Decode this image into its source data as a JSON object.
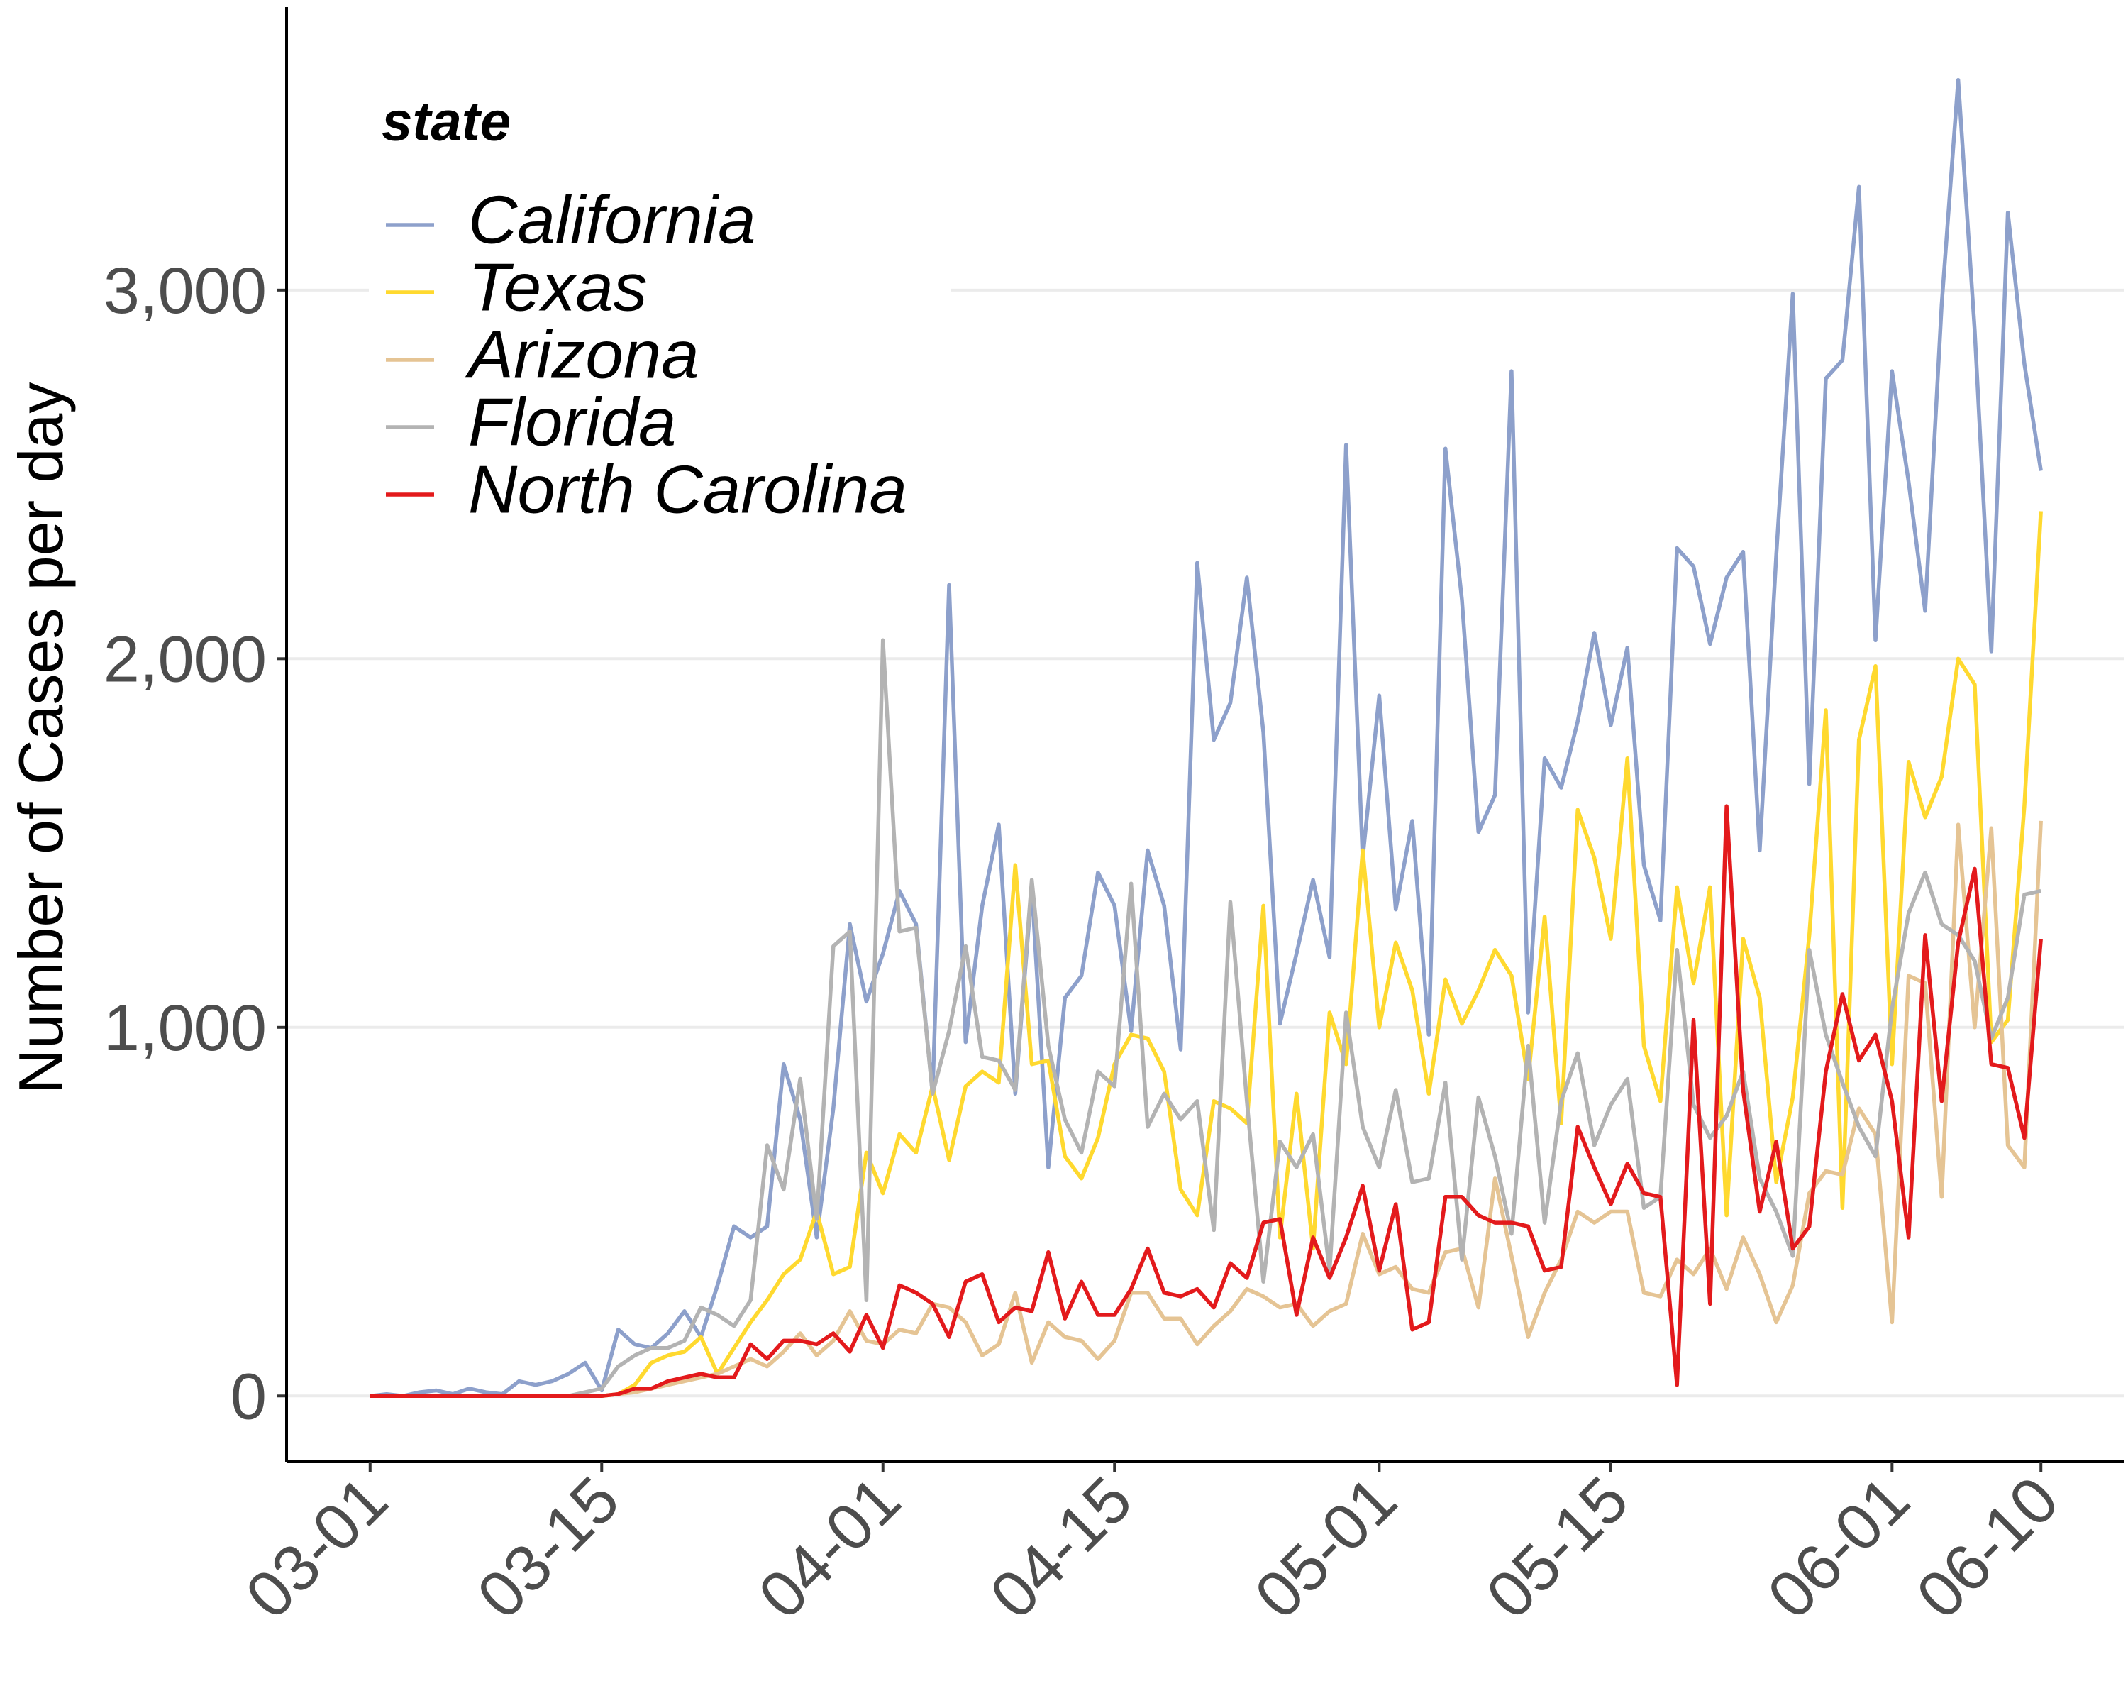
{
  "chart_data": {
    "type": "line",
    "y_label": "Number of Cases per day",
    "legend_title": "state",
    "legend_position": "top-left",
    "grid": true,
    "x": [
      "03-01",
      "03-02",
      "03-03",
      "03-04",
      "03-05",
      "03-06",
      "03-07",
      "03-08",
      "03-09",
      "03-10",
      "03-11",
      "03-12",
      "03-13",
      "03-14",
      "03-15",
      "03-16",
      "03-17",
      "03-18",
      "03-19",
      "03-20",
      "03-21",
      "03-22",
      "03-23",
      "03-24",
      "03-25",
      "03-26",
      "03-27",
      "03-28",
      "03-29",
      "03-30",
      "03-31",
      "04-01",
      "04-02",
      "04-03",
      "04-04",
      "04-05",
      "04-06",
      "04-07",
      "04-08",
      "04-09",
      "04-10",
      "04-11",
      "04-12",
      "04-13",
      "04-14",
      "04-15",
      "04-16",
      "04-17",
      "04-18",
      "04-19",
      "04-20",
      "04-21",
      "04-22",
      "04-23",
      "04-24",
      "04-25",
      "04-26",
      "04-27",
      "04-28",
      "04-29",
      "04-30",
      "05-01",
      "05-02",
      "05-03",
      "05-04",
      "05-05",
      "05-06",
      "05-07",
      "05-08",
      "05-09",
      "05-10",
      "05-11",
      "05-12",
      "05-13",
      "05-14",
      "05-15",
      "05-16",
      "05-17",
      "05-18",
      "05-19",
      "05-20",
      "05-21",
      "05-22",
      "05-23",
      "05-24",
      "05-25",
      "05-26",
      "05-27",
      "05-28",
      "05-29",
      "05-30",
      "05-31",
      "06-01",
      "06-02",
      "06-03",
      "06-04",
      "06-05",
      "06-06",
      "06-07",
      "06-08",
      "06-09",
      "06-10"
    ],
    "xticks": [
      "03-01",
      "03-15",
      "04-01",
      "04-15",
      "05-01",
      "05-15",
      "06-01",
      "06-10"
    ],
    "ylim": [
      -178.5,
      3748.5
    ],
    "yticks": [
      0,
      {
        "value": 1000,
        "label": "1,000"
      },
      {
        "value": 2000,
        "label": "2,000"
      },
      {
        "value": 3000,
        "label": "3,000"
      }
    ],
    "series": [
      {
        "name": "California",
        "color": "#8da0cb",
        "values": [
          0,
          5,
          0,
          10,
          15,
          5,
          20,
          10,
          5,
          40,
          30,
          40,
          60,
          90,
          15,
          180,
          140,
          130,
          170,
          230,
          160,
          300,
          460,
          430,
          460,
          900,
          750,
          430,
          780,
          1280,
          1070,
          1200,
          1370,
          1280,
          820,
          2200,
          960,
          1330,
          1550,
          820,
          1380,
          620,
          1080,
          1140,
          1420,
          1330,
          990,
          1480,
          1330,
          940,
          2260,
          1780,
          1880,
          2220,
          1800,
          1010,
          1200,
          1400,
          1190,
          2580,
          1460,
          1900,
          1320,
          1560,
          980,
          2570,
          2160,
          1530,
          1630,
          2780,
          1040,
          1730,
          1650,
          1830,
          2070,
          1820,
          2030,
          1440,
          1290,
          2300,
          2250,
          2040,
          2220,
          2290,
          1480,
          2280,
          2990,
          1660,
          2760,
          2810,
          3280,
          2050,
          2780,
          2480,
          2130,
          2960,
          3570,
          2890,
          2020,
          3210,
          2800,
          2510
        ]
      },
      {
        "name": "Texas",
        "color": "#ffd92f",
        "values": [
          0,
          0,
          0,
          0,
          0,
          0,
          0,
          0,
          0,
          0,
          0,
          0,
          0,
          0,
          0,
          5,
          30,
          90,
          110,
          120,
          160,
          60,
          130,
          200,
          260,
          330,
          370,
          500,
          330,
          350,
          660,
          550,
          710,
          660,
          840,
          640,
          840,
          880,
          850,
          1440,
          900,
          910,
          650,
          590,
          700,
          900,
          980,
          970,
          880,
          560,
          490,
          800,
          780,
          740,
          1330,
          430,
          820,
          400,
          1040,
          900,
          1480,
          1000,
          1230,
          1100,
          820,
          1130,
          1010,
          1100,
          1210,
          1140,
          860,
          1300,
          740,
          1590,
          1460,
          1240,
          1730,
          950,
          800,
          1380,
          1120,
          1380,
          490,
          1240,
          1080,
          580,
          810,
          1250,
          1860,
          510,
          1780,
          1980,
          900,
          1720,
          1570,
          1680,
          2000,
          1930,
          960,
          1020,
          1600,
          2400
        ]
      },
      {
        "name": "Arizona",
        "color": "#e5c494",
        "values": [
          0,
          0,
          0,
          0,
          0,
          0,
          0,
          0,
          0,
          0,
          0,
          0,
          0,
          0,
          0,
          5,
          10,
          20,
          30,
          40,
          50,
          60,
          80,
          100,
          80,
          120,
          170,
          110,
          150,
          230,
          150,
          140,
          180,
          170,
          250,
          240,
          200,
          110,
          140,
          280,
          90,
          200,
          160,
          150,
          100,
          150,
          280,
          280,
          210,
          210,
          140,
          190,
          230,
          290,
          270,
          240,
          250,
          190,
          230,
          250,
          440,
          330,
          350,
          290,
          280,
          390,
          400,
          240,
          590,
          380,
          160,
          280,
          370,
          500,
          470,
          500,
          500,
          280,
          270,
          370,
          330,
          400,
          290,
          430,
          330,
          200,
          300,
          550,
          610,
          600,
          780,
          710,
          200,
          1140,
          1120,
          540,
          1550,
          1000,
          1540,
          680,
          620,
          1560
        ]
      },
      {
        "name": "Florida",
        "color": "#b3b3b3",
        "values": [
          0,
          0,
          0,
          0,
          0,
          0,
          0,
          0,
          0,
          0,
          0,
          0,
          0,
          10,
          20,
          80,
          110,
          130,
          130,
          150,
          240,
          220,
          190,
          260,
          680,
          560,
          860,
          480,
          1220,
          1260,
          260,
          2050,
          1260,
          1270,
          820,
          990,
          1220,
          920,
          910,
          830,
          1400,
          950,
          750,
          660,
          880,
          840,
          1390,
          730,
          820,
          750,
          800,
          450,
          1340,
          800,
          310,
          690,
          620,
          710,
          340,
          1040,
          730,
          620,
          830,
          580,
          590,
          850,
          370,
          810,
          650,
          440,
          950,
          470,
          800,
          930,
          680,
          790,
          860,
          510,
          540,
          1210,
          790,
          700,
          760,
          880,
          590,
          500,
          380,
          1210,
          980,
          850,
          730,
          650,
          1050,
          1310,
          1420,
          1280,
          1250,
          1180,
          970,
          1080,
          1360,
          1370
        ]
      },
      {
        "name": "North Carolina",
        "color": "#e31a1c",
        "values": [
          0,
          0,
          0,
          0,
          0,
          0,
          0,
          0,
          0,
          0,
          0,
          0,
          0,
          0,
          0,
          5,
          20,
          20,
          40,
          50,
          60,
          50,
          50,
          140,
          100,
          150,
          150,
          140,
          170,
          120,
          220,
          130,
          300,
          280,
          250,
          160,
          310,
          330,
          200,
          240,
          230,
          390,
          210,
          310,
          220,
          220,
          290,
          400,
          280,
          270,
          290,
          240,
          360,
          320,
          470,
          480,
          220,
          430,
          320,
          430,
          570,
          340,
          520,
          180,
          200,
          540,
          540,
          490,
          470,
          470,
          460,
          340,
          350,
          730,
          620,
          520,
          630,
          550,
          540,
          30,
          1020,
          250,
          1600,
          830,
          500,
          690,
          400,
          460,
          880,
          1090,
          910,
          980,
          800,
          430,
          1250,
          800,
          1230,
          1430,
          900,
          890,
          700,
          1240
        ]
      }
    ]
  }
}
